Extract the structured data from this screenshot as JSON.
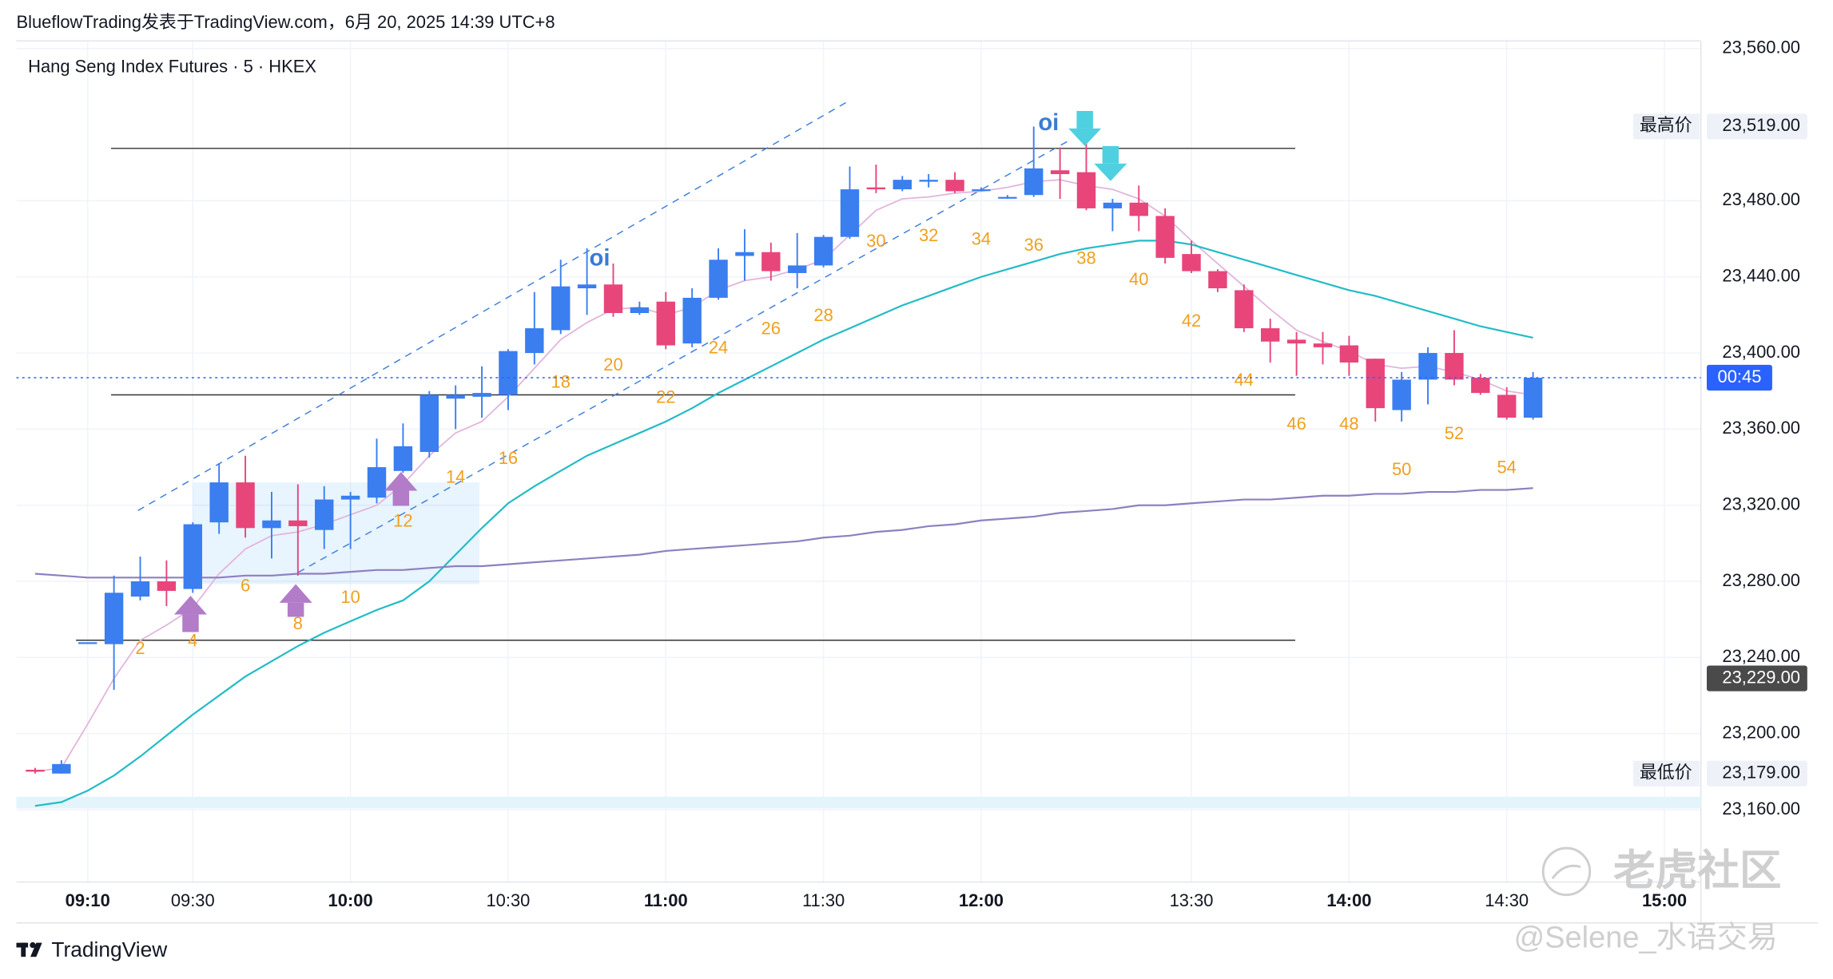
{
  "header": "BlueflowTrading发表于TradingView.com，6月 20, 2025 14:39 UTC+8",
  "chart_data": {
    "type": "candlestick",
    "title": "Hang Seng Index Futures · 5 · HKEX",
    "categories": [
      null,
      null,
      "09:10",
      null,
      null,
      null,
      "09:30",
      null,
      null,
      null,
      null,
      null,
      "10:00",
      null,
      null,
      null,
      null,
      null,
      "10:30",
      null,
      null,
      null,
      null,
      null,
      "11:00",
      null,
      null,
      null,
      null,
      null,
      "11:30",
      null,
      null,
      null,
      null,
      null,
      "12:00",
      null,
      null,
      null,
      null,
      null,
      null,
      null,
      "13:30",
      null,
      null,
      null,
      null,
      null,
      "14:00",
      null,
      null,
      null,
      null,
      null,
      "14:30",
      null,
      null,
      null,
      null,
      null,
      "15:00"
    ],
    "open": [
      23181,
      23179,
      23248,
      23247,
      23272,
      23280,
      23276,
      23311,
      23332,
      23308,
      23312,
      23307,
      23323,
      23324,
      23338,
      23348,
      23376,
      23377,
      23378,
      23400,
      23412,
      23434,
      23436,
      23421,
      23427,
      23405,
      23429,
      23451,
      23453,
      23442,
      23446,
      23461,
      23487,
      23486,
      23490,
      23491,
      23486,
      23482,
      23483,
      23496,
      23495,
      23476,
      23479,
      23472,
      23452,
      23443,
      23433,
      23413,
      23407,
      23405,
      23404,
      23397,
      23370,
      23386,
      23400,
      23387,
      23378,
      23366,
      null,
      null,
      null,
      null,
      null
    ],
    "high": [
      23182,
      23186,
      23248,
      23283,
      23293,
      23291,
      23311,
      23342,
      23346,
      23327,
      23331,
      23330,
      23327,
      23355,
      23363,
      23380,
      23383,
      23393,
      23402,
      23432,
      23449,
      23455,
      23447,
      23427,
      23432,
      23434,
      23455,
      23465,
      23458,
      23463,
      23462,
      23498,
      23499,
      23493,
      23494,
      23495,
      23487,
      23483,
      23519,
      23508,
      23510,
      23481,
      23488,
      23476,
      23459,
      23444,
      23436,
      23418,
      23411,
      23411,
      23409,
      23397,
      23390,
      23403,
      23412,
      23389,
      23382,
      23390,
      null,
      null,
      null,
      null,
      null
    ],
    "low": [
      23179,
      23179,
      23248,
      23223,
      23270,
      23267,
      23274,
      23305,
      23303,
      23292,
      23283,
      23297,
      23297,
      23321,
      23337,
      23345,
      23360,
      23366,
      23370,
      23394,
      23410,
      23420,
      23419,
      23420,
      23402,
      23403,
      23428,
      23438,
      23438,
      23434,
      23445,
      23460,
      23484,
      23485,
      23487,
      23484,
      23485,
      23481,
      23482,
      23481,
      23475,
      23464,
      23464,
      23447,
      23442,
      23432,
      23411,
      23395,
      23388,
      23394,
      23388,
      23364,
      23364,
      23373,
      23383,
      23378,
      23365,
      23365,
      null,
      null,
      null,
      null,
      null
    ],
    "close": [
      23180,
      23184,
      23248,
      23274,
      23280,
      23275,
      23310,
      23332,
      23308,
      23312,
      23309,
      23323,
      23325,
      23340,
      23351,
      23378,
      23378,
      23379,
      23401,
      23413,
      23435,
      23436,
      23421,
      23424,
      23404,
      23429,
      23449,
      23453,
      23443,
      23446,
      23461,
      23486,
      23486,
      23491,
      23491,
      23485,
      23486,
      23482,
      23497,
      23494,
      23476,
      23479,
      23472,
      23450,
      23443,
      23434,
      23413,
      23406,
      23405,
      23403,
      23395,
      23371,
      23386,
      23400,
      23386,
      23379,
      23366,
      23387,
      null,
      null,
      null,
      null,
      null
    ],
    "up_color": "#3a7ef0",
    "down_color": "#e8457b",
    "lines": [
      {
        "color": "#e2b4dc",
        "values": [
          23180,
          23182,
          23205,
          23229,
          23249,
          23257,
          23266,
          23284,
          23297,
          23304,
          23306,
          23310,
          23315,
          23320,
          23331,
          23346,
          23358,
          23364,
          23377,
          23392,
          23407,
          23416,
          23423,
          23424,
          23420,
          23424,
          23433,
          23438,
          23440,
          23444,
          23449,
          23462,
          23475,
          23481,
          23482,
          23484,
          23485,
          23487,
          23490,
          23491,
          23488,
          23486,
          23481,
          23472,
          23459,
          23447,
          23435,
          23423,
          23412,
          23406,
          23401,
          23394,
          23392,
          23393,
          23390,
          23386,
          23380,
          23378,
          null,
          null,
          null,
          null,
          null
        ]
      },
      {
        "color": "#22bcc6",
        "values": [
          23162,
          23164,
          23170,
          23178,
          23188,
          23199,
          23210,
          23220,
          23230,
          23238,
          23246,
          23253,
          23259,
          23265,
          23270,
          23280,
          23294,
          23308,
          23321,
          23330,
          23338,
          23346,
          23352,
          23358,
          23364,
          23371,
          23379,
          23386,
          23393,
          23400,
          23407,
          23413,
          23419,
          23425,
          23430,
          23435,
          23440,
          23444,
          23448,
          23452,
          23455,
          23457,
          23459,
          23459,
          23457,
          23453,
          23449,
          23445,
          23441,
          23437,
          23433,
          23430,
          23426,
          23422,
          23418,
          23414,
          23411,
          23408,
          null,
          null,
          null,
          null,
          null
        ]
      },
      {
        "color": "#8e80c0",
        "values": [
          23284,
          23283,
          23282,
          23282,
          23282,
          23282,
          23282,
          23282,
          23283,
          23283,
          23284,
          23284,
          23285,
          23286,
          23286,
          23287,
          23288,
          23288,
          23289,
          23290,
          23291,
          23292,
          23293,
          23294,
          23296,
          23297,
          23298,
          23299,
          23300,
          23301,
          23303,
          23304,
          23306,
          23307,
          23309,
          23310,
          23312,
          23313,
          23314,
          23316,
          23317,
          23318,
          23320,
          23320,
          23321,
          23322,
          23323,
          23323,
          23324,
          23325,
          23325,
          23326,
          23326,
          23327,
          23327,
          23328,
          23328,
          23329,
          null,
          null,
          null,
          null,
          null
        ]
      }
    ],
    "ylim": [
      23122,
      23564
    ],
    "yticks": [
      {
        "value": 23160,
        "label": "23,160.00"
      },
      {
        "value": 23200,
        "label": "23,200.00"
      },
      {
        "value": 23240,
        "label": "23,240.00"
      },
      {
        "value": 23280,
        "label": "23,280.00"
      },
      {
        "value": 23320,
        "label": "23,320.00"
      },
      {
        "value": 23360,
        "label": "23,360.00"
      },
      {
        "value": 23400,
        "label": "23,400.00"
      },
      {
        "value": 23440,
        "label": "23,440.00"
      },
      {
        "value": 23480,
        "label": "23,480.00"
      },
      {
        "value": 23560,
        "label": "23,560.00"
      }
    ],
    "grid": true,
    "price_labels": [
      {
        "text": "最高价",
        "value": 23519,
        "label": "23,519.00"
      },
      {
        "text": "最低价",
        "value": 23179,
        "label": "23,179.00"
      },
      {
        "value": 23229,
        "label": "23,229.00"
      }
    ],
    "countdown": "00:45",
    "bar_numbers": [
      2,
      4,
      6,
      8,
      10,
      12,
      14,
      16,
      18,
      20,
      22,
      24,
      26,
      28,
      30,
      32,
      34,
      36,
      38,
      40,
      42,
      44,
      46,
      48,
      50,
      52,
      54
    ],
    "annotations": [
      "oi",
      "oi"
    ]
  },
  "footer": {
    "logo": "TradingView",
    "watermarks": [
      "老虎社区",
      "@Selene_水语交易"
    ]
  }
}
